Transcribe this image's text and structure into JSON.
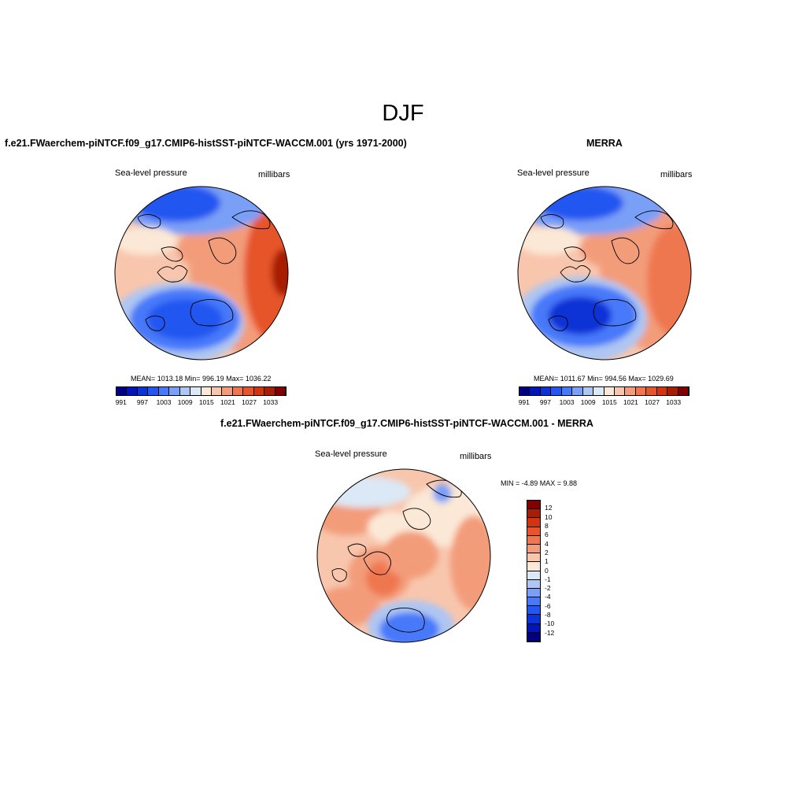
{
  "title": "DJF",
  "panels": {
    "model": {
      "heading": "f.e21.FWaerchem-piNTCF.f09_g17.CMIP6-histSST-piNTCF-WACCM.001 (yrs 1971-2000)",
      "left_label": "Sea-level pressure",
      "right_label": "millibars",
      "stats": "MEAN= 1013.18   Min= 996.19   Max= 1036.22"
    },
    "obs": {
      "heading": "MERRA",
      "left_label": "Sea-level pressure",
      "right_label": "millibars",
      "stats": "MEAN= 1011.67   Min= 994.56   Max= 1029.69"
    },
    "diff": {
      "heading": "f.e21.FWaerchem-piNTCF.f09_g17.CMIP6-histSST-piNTCF-WACCM.001 - MERRA",
      "left_label": "Sea-level pressure",
      "right_label": "millibars",
      "stats": "MIN =  -4.89 MAX =   9.88"
    }
  },
  "colorbars": {
    "abs": {
      "colors": [
        "#000080",
        "#0016b8",
        "#0b33d6",
        "#2456f0",
        "#4779fa",
        "#7a9ff7",
        "#adc6f2",
        "#dbe8f5",
        "#fbe8d6",
        "#f8c6ad",
        "#f39c7a",
        "#ef7750",
        "#e6552b",
        "#d43310",
        "#a81d05",
        "#800000"
      ],
      "tick_labels": [
        "991",
        "997",
        "1003",
        "1009",
        "1015",
        "1021",
        "1027",
        "1033"
      ]
    },
    "diff": {
      "colors": [
        "#000080",
        "#0016b8",
        "#0b33d6",
        "#2456f0",
        "#4779fa",
        "#7a9ff7",
        "#adc6f2",
        "#dbe8f5",
        "#fbe8d6",
        "#f8c6ad",
        "#f39c7a",
        "#ef7750",
        "#e6552b",
        "#d43310",
        "#a81d05",
        "#800000"
      ],
      "tick_labels": [
        "12",
        "10",
        "8",
        "6",
        "4",
        "2",
        "1",
        "0",
        "-1",
        "-2",
        "-4",
        "-6",
        "-8",
        "-10",
        "-12"
      ]
    }
  }
}
